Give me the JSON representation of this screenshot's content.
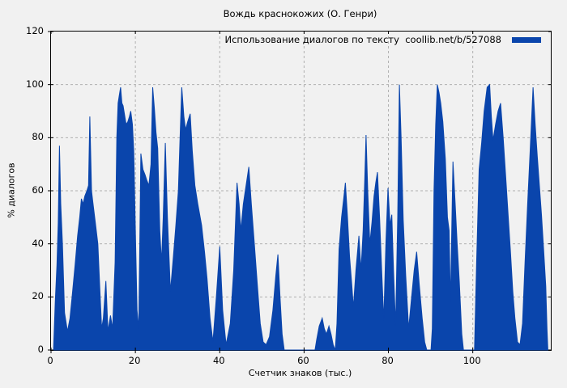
{
  "chart_data": {
    "type": "area",
    "title": "Вождь краснокожих (О. Генри)",
    "legend_label": "Использование диалогов по тексту  coollib.net/b/527088",
    "xlabel": "Счетчик знаков (тыс.)",
    "ylabel": "% диалогов",
    "xlim": [
      0,
      118.5
    ],
    "ylim": [
      0,
      120
    ],
    "xticks": [
      0,
      20,
      40,
      60,
      80,
      100
    ],
    "yticks": [
      0,
      20,
      40,
      60,
      80,
      100,
      120
    ],
    "grid": true,
    "legend_position": "top-right-inside",
    "series_color": "#0a45ac",
    "grid_color": "#b0b0b0",
    "background_color": "#f1f1f1",
    "series_name": "Использование диалогов",
    "points": [
      [
        0.6,
        0
      ],
      [
        1.0,
        18
      ],
      [
        1.4,
        32
      ],
      [
        1.7,
        48
      ],
      [
        2.0,
        77
      ],
      [
        2.3,
        55
      ],
      [
        2.7,
        40
      ],
      [
        3.2,
        14
      ],
      [
        3.9,
        7
      ],
      [
        4.5,
        12
      ],
      [
        5.0,
        20
      ],
      [
        5.7,
        32
      ],
      [
        6.3,
        43
      ],
      [
        6.8,
        50
      ],
      [
        7.2,
        57
      ],
      [
        7.6,
        55
      ],
      [
        8.0,
        58
      ],
      [
        8.5,
        60
      ],
      [
        8.9,
        62
      ],
      [
        9.2,
        88
      ],
      [
        9.6,
        60
      ],
      [
        9.9,
        56
      ],
      [
        10.5,
        48
      ],
      [
        11.1,
        40
      ],
      [
        11.6,
        22
      ],
      [
        12.0,
        8
      ],
      [
        12.4,
        12
      ],
      [
        13.0,
        26
      ],
      [
        13.5,
        7
      ],
      [
        14.1,
        13
      ],
      [
        14.6,
        8
      ],
      [
        15.2,
        33
      ],
      [
        15.6,
        80
      ],
      [
        15.9,
        93
      ],
      [
        16.2,
        96
      ],
      [
        16.5,
        99
      ],
      [
        16.8,
        93
      ],
      [
        17.1,
        92
      ],
      [
        17.5,
        88
      ],
      [
        17.8,
        85
      ],
      [
        18.2,
        86
      ],
      [
        18.6,
        88
      ],
      [
        18.9,
        90
      ],
      [
        19.3,
        85
      ],
      [
        19.6,
        75
      ],
      [
        20.0,
        45
      ],
      [
        20.4,
        15
      ],
      [
        20.8,
        8
      ],
      [
        21.3,
        74
      ],
      [
        21.8,
        68
      ],
      [
        22.3,
        66
      ],
      [
        22.7,
        64
      ],
      [
        23.2,
        62
      ],
      [
        23.7,
        70
      ],
      [
        24.1,
        99
      ],
      [
        24.5,
        91
      ],
      [
        24.9,
        82
      ],
      [
        25.3,
        76
      ],
      [
        25.8,
        45
      ],
      [
        26.2,
        33
      ],
      [
        26.6,
        50
      ],
      [
        27.1,
        78
      ],
      [
        27.6,
        50
      ],
      [
        28.3,
        22
      ],
      [
        29.0,
        35
      ],
      [
        29.6,
        47
      ],
      [
        30.2,
        60
      ],
      [
        30.6,
        80
      ],
      [
        31.0,
        99
      ],
      [
        31.5,
        88
      ],
      [
        31.9,
        83
      ],
      [
        32.4,
        86
      ],
      [
        33.0,
        89
      ],
      [
        33.5,
        75
      ],
      [
        34.1,
        62
      ],
      [
        34.8,
        55
      ],
      [
        35.7,
        47
      ],
      [
        36.4,
        37
      ],
      [
        37.0,
        27
      ],
      [
        37.7,
        12
      ],
      [
        38.4,
        3
      ],
      [
        39.2,
        20
      ],
      [
        40.0,
        39
      ],
      [
        40.7,
        15
      ],
      [
        41.5,
        2
      ],
      [
        42.5,
        10
      ],
      [
        43.3,
        30
      ],
      [
        44.1,
        63
      ],
      [
        44.6,
        55
      ],
      [
        45.0,
        45
      ],
      [
        45.6,
        55
      ],
      [
        46.9,
        69
      ],
      [
        47.5,
        55
      ],
      [
        48.2,
        40
      ],
      [
        48.9,
        25
      ],
      [
        49.6,
        10
      ],
      [
        50.3,
        3
      ],
      [
        51.0,
        2
      ],
      [
        51.8,
        5
      ],
      [
        52.6,
        15
      ],
      [
        53.3,
        28
      ],
      [
        53.8,
        36
      ],
      [
        54.3,
        20
      ],
      [
        54.8,
        6
      ],
      [
        55.3,
        0
      ],
      [
        62.6,
        0
      ],
      [
        63.0,
        4
      ],
      [
        63.6,
        9
      ],
      [
        64.3,
        12
      ],
      [
        64.8,
        8
      ],
      [
        65.3,
        6
      ],
      [
        65.9,
        9
      ],
      [
        66.4,
        6
      ],
      [
        66.9,
        2
      ],
      [
        67.4,
        0
      ],
      [
        67.8,
        10
      ],
      [
        68.3,
        38
      ],
      [
        68.9,
        50
      ],
      [
        69.4,
        57
      ],
      [
        69.8,
        63
      ],
      [
        70.3,
        50
      ],
      [
        70.8,
        35
      ],
      [
        71.3,
        25
      ],
      [
        71.7,
        16
      ],
      [
        72.3,
        30
      ],
      [
        73.0,
        43
      ],
      [
        73.5,
        30
      ],
      [
        74.0,
        45
      ],
      [
        74.4,
        65
      ],
      [
        74.7,
        81
      ],
      [
        75.1,
        60
      ],
      [
        75.6,
        40
      ],
      [
        76.1,
        48
      ],
      [
        76.6,
        58
      ],
      [
        77.0,
        63
      ],
      [
        77.4,
        67
      ],
      [
        77.9,
        50
      ],
      [
        78.4,
        30
      ],
      [
        78.9,
        11
      ],
      [
        79.4,
        40
      ],
      [
        79.9,
        61
      ],
      [
        80.4,
        47
      ],
      [
        80.8,
        51
      ],
      [
        81.2,
        30
      ],
      [
        81.7,
        9
      ],
      [
        82.2,
        50
      ],
      [
        82.6,
        100
      ],
      [
        83.0,
        80
      ],
      [
        83.5,
        49
      ],
      [
        84.1,
        28
      ],
      [
        84.8,
        8
      ],
      [
        85.5,
        20
      ],
      [
        86.1,
        30
      ],
      [
        86.7,
        37
      ],
      [
        87.3,
        25
      ],
      [
        88.0,
        12
      ],
      [
        88.6,
        3
      ],
      [
        89.1,
        0
      ],
      [
        90.1,
        0
      ],
      [
        90.4,
        8
      ],
      [
        90.8,
        60
      ],
      [
        91.2,
        85
      ],
      [
        91.6,
        100
      ],
      [
        92.0,
        97
      ],
      [
        92.4,
        93
      ],
      [
        92.9,
        86
      ],
      [
        93.5,
        72
      ],
      [
        94.0,
        50
      ],
      [
        94.4,
        45
      ],
      [
        94.7,
        17
      ],
      [
        95.3,
        71
      ],
      [
        95.8,
        56
      ],
      [
        96.3,
        40
      ],
      [
        96.8,
        26
      ],
      [
        97.4,
        6
      ],
      [
        97.8,
        0
      ],
      [
        100.4,
        0
      ],
      [
        100.9,
        33
      ],
      [
        101.5,
        68
      ],
      [
        102.1,
        78
      ],
      [
        102.7,
        90
      ],
      [
        103.4,
        99
      ],
      [
        104.0,
        100
      ],
      [
        104.4,
        88
      ],
      [
        104.8,
        79
      ],
      [
        105.4,
        85
      ],
      [
        106.0,
        90
      ],
      [
        106.6,
        93
      ],
      [
        107.2,
        80
      ],
      [
        107.9,
        63
      ],
      [
        108.5,
        48
      ],
      [
        108.9,
        38
      ],
      [
        109.5,
        22
      ],
      [
        110.0,
        12
      ],
      [
        110.6,
        3
      ],
      [
        111.2,
        2
      ],
      [
        111.8,
        10
      ],
      [
        112.4,
        33
      ],
      [
        113.0,
        55
      ],
      [
        113.6,
        75
      ],
      [
        114.3,
        99
      ],
      [
        114.8,
        85
      ],
      [
        115.3,
        73
      ],
      [
        115.8,
        62
      ],
      [
        116.3,
        51
      ],
      [
        116.8,
        38
      ],
      [
        117.3,
        24
      ],
      [
        117.6,
        8
      ],
      [
        117.8,
        0
      ],
      [
        118.5,
        0
      ]
    ]
  }
}
